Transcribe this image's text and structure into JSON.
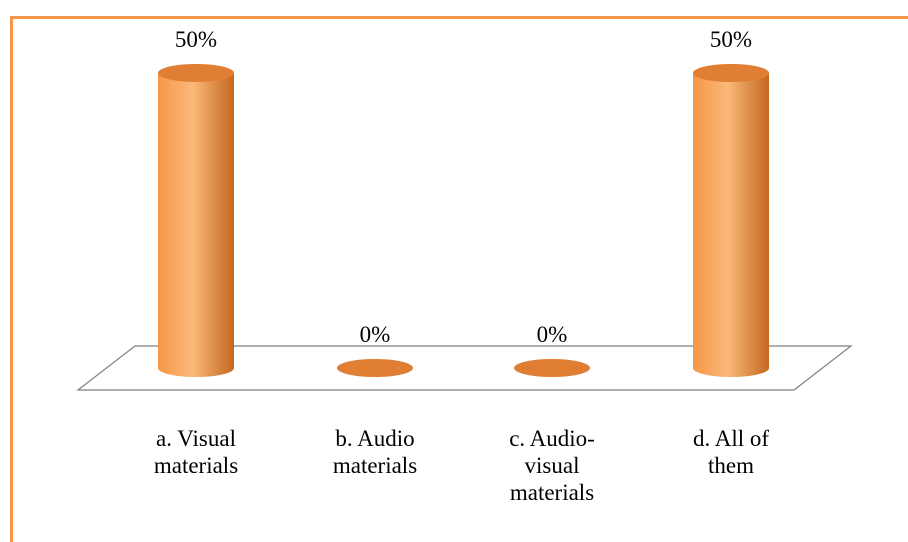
{
  "chart_data": {
    "type": "bar",
    "style": "3d-cylinder",
    "categories": [
      [
        "a. Visual",
        "materials"
      ],
      [
        "b. Audio",
        "materials"
      ],
      [
        "c. Audio-",
        "visual",
        "materials"
      ],
      [
        "d. All of",
        "them"
      ]
    ],
    "values": [
      50,
      0,
      0,
      50
    ],
    "data_labels": [
      "50%",
      "0%",
      "0%",
      "50%"
    ],
    "ylim": [
      0,
      50
    ],
    "grid": false,
    "legend": "none",
    "colors": {
      "bar": "#f79646",
      "bar_highlight": "#fbb97a",
      "bar_shadow": "#c4681f",
      "top": "#e07f34",
      "border": "#f79646",
      "floor_stroke": "#7f7f7f"
    }
  }
}
